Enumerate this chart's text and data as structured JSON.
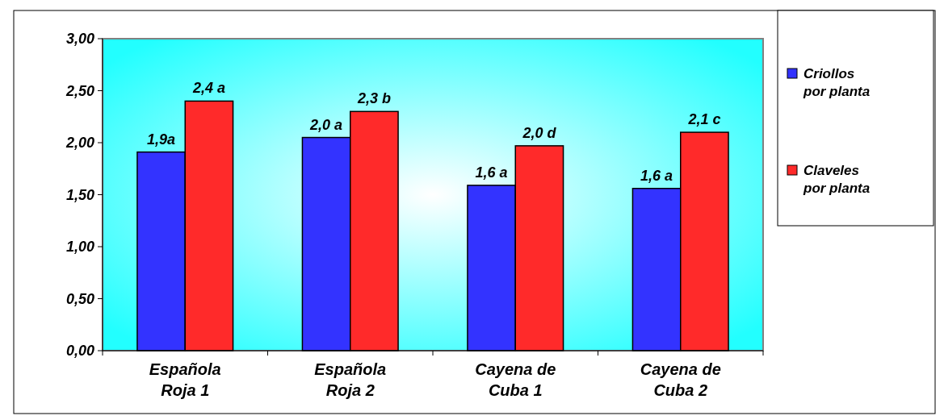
{
  "chart_data": {
    "type": "bar",
    "categories": [
      "Española Roja 1",
      "Española Roja 2",
      "Cayena de Cuba 1",
      "Cayena de Cuba 2"
    ],
    "series": [
      {
        "name": "Criollos por planta",
        "color": "#3333ff",
        "values": [
          1.91,
          2.05,
          1.59,
          1.56
        ],
        "value_labels": [
          "1,9a",
          "2,0 a",
          "1,6 a",
          "1,6 a"
        ]
      },
      {
        "name": "Claveles por planta",
        "color": "#ff2a2a",
        "values": [
          2.4,
          2.3,
          1.97,
          2.1
        ],
        "value_labels": [
          "2,4 a",
          "2,3 b",
          "2,0 d",
          "2,1 c"
        ]
      }
    ],
    "ylim": [
      0,
      3
    ],
    "yticks": [
      {
        "value": 0,
        "label": "0,00"
      },
      {
        "value": 0.5,
        "label": "0,50"
      },
      {
        "value": 1,
        "label": "1,00"
      },
      {
        "value": 1.5,
        "label": "1,50"
      },
      {
        "value": 2,
        "label": "2,00"
      },
      {
        "value": 2.5,
        "label": "2,50"
      },
      {
        "value": 3,
        "label": "3,00"
      }
    ],
    "legend": "right"
  }
}
